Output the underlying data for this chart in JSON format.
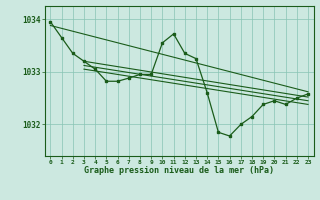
{
  "background_color": "#cce8e0",
  "grid_color": "#88c4b4",
  "line_color": "#1a5c1a",
  "title": "Graphe pression niveau de la mer (hPa)",
  "xlim": [
    -0.5,
    23.5
  ],
  "ylim": [
    1031.4,
    1034.25
  ],
  "yticks": [
    1032,
    1033,
    1034
  ],
  "ytick_labels": [
    "1032",
    "1033",
    "1034"
  ],
  "hours": [
    0,
    1,
    2,
    3,
    4,
    5,
    6,
    7,
    8,
    9,
    10,
    11,
    12,
    13,
    14,
    15,
    16,
    17,
    18,
    19,
    20,
    21,
    22,
    23
  ],
  "main_line": [
    1033.95,
    1033.65,
    1033.35,
    1033.2,
    1033.05,
    1032.82,
    1032.82,
    1032.88,
    1032.95,
    1032.95,
    1033.55,
    1033.72,
    1033.35,
    1033.25,
    1032.6,
    1031.85,
    1031.78,
    1032.0,
    1032.15,
    1032.38,
    1032.45,
    1032.38,
    1032.5,
    1032.58
  ],
  "trend1_x": [
    0,
    23
  ],
  "trend1_y": [
    1033.88,
    1032.62
  ],
  "trend2_x": [
    3,
    23
  ],
  "trend2_y": [
    1033.2,
    1032.52
  ],
  "trend3_x": [
    3,
    23
  ],
  "trend3_y": [
    1033.12,
    1032.45
  ],
  "trend4_x": [
    3,
    23
  ],
  "trend4_y": [
    1033.05,
    1032.38
  ]
}
